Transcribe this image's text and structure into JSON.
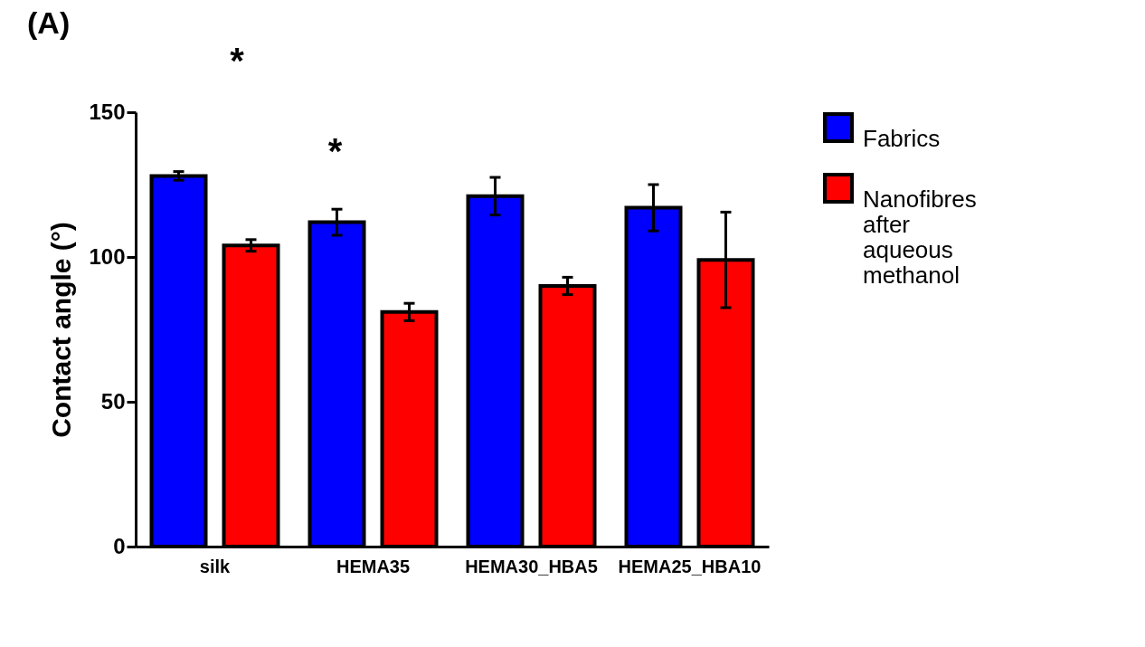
{
  "chart_data": {
    "type": "bar",
    "title": "(A)",
    "ylabel": "Contact angle (°)",
    "categories": [
      "silk",
      "HEMA35",
      "HEMA30_HBA5",
      "HEMA25_HBA10"
    ],
    "series": [
      {
        "name": "Fabrics",
        "color": "#0000ff",
        "values": [
          128,
          112,
          121,
          117
        ],
        "errors": [
          1.5,
          4.5,
          6.5,
          8
        ]
      },
      {
        "name": "Nanofibres after aqueous methanol",
        "color": "#ff0000",
        "values": [
          104,
          81,
          90,
          99
        ],
        "errors": [
          2,
          3,
          3,
          16.5
        ]
      }
    ],
    "ylim": [
      0,
      150
    ],
    "yticks": [
      0,
      50,
      100,
      150
    ],
    "grid": false,
    "legend": "top right",
    "annotations": [
      "*",
      "*"
    ]
  }
}
